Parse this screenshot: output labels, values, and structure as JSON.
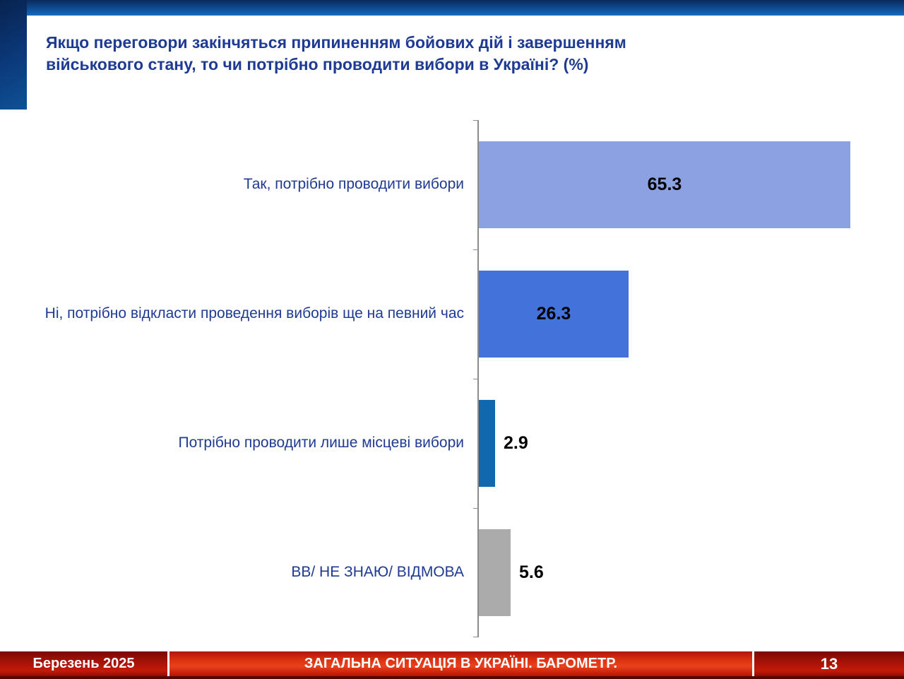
{
  "title": "Якщо переговори закінчяться припиненням бойових дій і завершенням військового стану, то чи потрібно проводити вибори в Україні? (%)",
  "footer": {
    "date": "Березень 2025",
    "section_title": "ЗАГАЛЬНА СИТУАЦІЯ В УКРАЇНІ. БАРОМЕТР.",
    "page_number": "13"
  },
  "colors": {
    "title_text": "#1e3a93",
    "top_band_blue": "#0e4c92",
    "accent_navy": "#0b3a7c",
    "footer_red_dark": "#a91207",
    "footer_red_bright": "#e03412",
    "axis_gray": "#8c8c8c"
  },
  "chart_data": {
    "type": "bar",
    "orientation": "horizontal",
    "title": "Якщо переговори закінчяться припиненням бойових дій і завершенням військового стану, то чи потрібно проводити вибори в Україні? (%)",
    "categories": [
      "Так, потрібно проводити вибори",
      "Ні, потрібно відкласти проведення виборів ще на певний час",
      "Потрібно проводити лише місцеві вибори",
      "ВВ/ НЕ ЗНАЮ/ ВІДМОВА"
    ],
    "values": [
      65.3,
      26.3,
      2.9,
      5.6
    ],
    "bar_colors": [
      "#8ca1e1",
      "#4472db",
      "#1168ae",
      "#ababab"
    ],
    "value_labels": [
      "65.3",
      "26.3",
      "2.9",
      "5.6"
    ],
    "value_label_inside_threshold": 10,
    "xlim": [
      0,
      68
    ],
    "grid": false,
    "legend": false
  }
}
